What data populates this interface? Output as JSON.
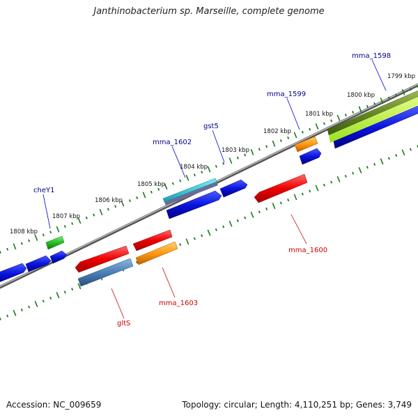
{
  "title": "Janthinobacterium sp. Marseille, complete genome",
  "footer": {
    "accession": "Accession: NC_009659",
    "summary": "Topology: circular; Length: 4,110,251 bp; Genes: 3,749"
  },
  "ruler_labels": [
    "1799 kbp",
    "1800 kbp",
    "1801 kbp",
    "1802 kbp",
    "1803 kbp",
    "1804 kbp",
    "1805 kbp",
    "1806 kbp",
    "1807 kbp",
    "1808 kbp"
  ],
  "gene_labels": {
    "top": [
      "mma_1598",
      "mma_1599",
      "gst5",
      "mma_1602",
      "cheY1"
    ],
    "bottom": [
      "mma_1600",
      "mma_1603",
      "gltS"
    ]
  },
  "colors": {
    "label_forward": "#00008b",
    "label_reverse": "#cc0000",
    "backbone": "#777777",
    "ticks": "#1a7a1a"
  }
}
